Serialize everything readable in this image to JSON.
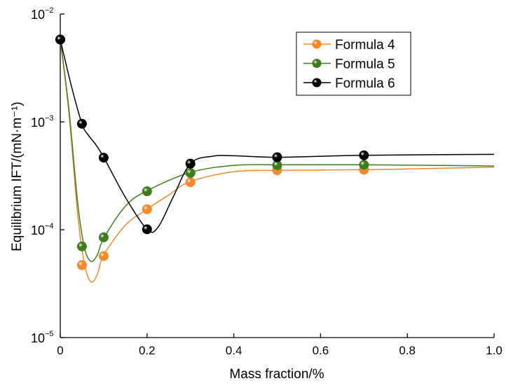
{
  "chart_data": {
    "type": "line",
    "title": "",
    "xlabel": "Mass fraction/%",
    "ylabel": "Equilibrium IFT/(mN·m⁻¹)",
    "xscale": "linear",
    "yscale": "log",
    "xlim": [
      0,
      1.0
    ],
    "ylim": [
      1e-05,
      0.01
    ],
    "xticks": [
      0,
      0.2,
      0.4,
      0.6,
      0.8,
      1.0
    ],
    "xtick_labels": [
      "0",
      "0.2",
      "0.4",
      "0.6",
      "0.8",
      "1.0"
    ],
    "yticks": [
      0.01,
      0.001,
      0.0001,
      1e-05
    ],
    "ytick_labels": [
      {
        "base": "10",
        "exp": "−2"
      },
      {
        "base": "10",
        "exp": "−3"
      },
      {
        "base": "10",
        "exp": "−4"
      },
      {
        "base": "10",
        "exp": "−5"
      }
    ],
    "grid": false,
    "legend_position": "top-right",
    "series": [
      {
        "name": "Formula 4",
        "color": "#f0892a",
        "x": [
          0,
          0.05,
          0.1,
          0.2,
          0.3,
          0.5,
          0.7
        ],
        "y": [
          0.0058,
          4.7e-05,
          5.7e-05,
          0.000155,
          0.000276,
          0.000356,
          0.00036
        ],
        "curve": [
          [
            0,
            0.0058
          ],
          [
            0.02,
            0.0012
          ],
          [
            0.04,
            0.00014
          ],
          [
            0.055,
            5e-05
          ],
          [
            0.07,
            3.3e-05
          ],
          [
            0.085,
            3.8e-05
          ],
          [
            0.1,
            5.8e-05
          ],
          [
            0.15,
            0.00011
          ],
          [
            0.2,
            0.000155
          ],
          [
            0.25,
            0.00021
          ],
          [
            0.3,
            0.00028
          ],
          [
            0.4,
            0.000345
          ],
          [
            0.5,
            0.000355
          ],
          [
            0.7,
            0.00036
          ],
          [
            1.0,
            0.00038
          ]
        ]
      },
      {
        "name": "Formula 5",
        "color": "#3f7d1f",
        "x": [
          0,
          0.05,
          0.1,
          0.2,
          0.3,
          0.5,
          0.7
        ],
        "y": [
          0.0058,
          7e-05,
          8.5e-05,
          0.000227,
          0.000336,
          0.000396,
          0.0004
        ],
        "curve": [
          [
            0,
            0.0058
          ],
          [
            0.02,
            0.0013
          ],
          [
            0.04,
            0.00018
          ],
          [
            0.055,
            7e-05
          ],
          [
            0.07,
            5.1e-05
          ],
          [
            0.085,
            5.8e-05
          ],
          [
            0.1,
            8.3e-05
          ],
          [
            0.15,
            0.000165
          ],
          [
            0.2,
            0.00023
          ],
          [
            0.3,
            0.00034
          ],
          [
            0.4,
            0.000395
          ],
          [
            0.5,
            0.0004
          ],
          [
            0.7,
            0.0004
          ],
          [
            1.0,
            0.00039
          ]
        ]
      },
      {
        "name": "Formula 6",
        "color": "#000000",
        "x": [
          0,
          0.05,
          0.1,
          0.2,
          0.3,
          0.5,
          0.7
        ],
        "y": [
          0.0058,
          0.00096,
          0.000466,
          0.000101,
          0.00041,
          0.00047,
          0.00049
        ],
        "curve": [
          [
            0,
            0.0058
          ],
          [
            0.025,
            0.0022
          ],
          [
            0.05,
            0.00096
          ],
          [
            0.065,
            0.00075
          ],
          [
            0.08,
            0.00063
          ],
          [
            0.1,
            0.00047
          ],
          [
            0.15,
            0.0002
          ],
          [
            0.2,
            0.000101
          ],
          [
            0.225,
            0.000105
          ],
          [
            0.26,
            0.0002
          ],
          [
            0.3,
            0.00041
          ],
          [
            0.35,
            0.00048
          ],
          [
            0.4,
            0.000485
          ],
          [
            0.5,
            0.00047
          ],
          [
            0.7,
            0.00049
          ],
          [
            1.0,
            0.0005
          ]
        ]
      }
    ]
  }
}
